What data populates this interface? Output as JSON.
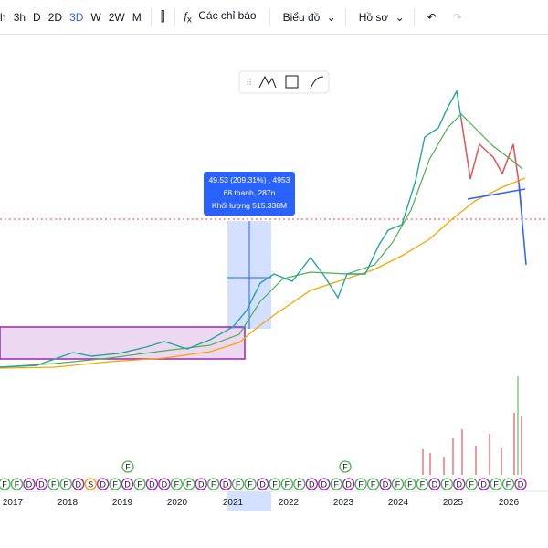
{
  "toolbar": {
    "intervals": [
      "h",
      "3h",
      "D",
      "2D",
      "3D",
      "W",
      "2W",
      "M"
    ],
    "active_interval": "3D",
    "indicators": "Các chỉ báo",
    "chart": "Biểu đồ",
    "profile": "Hồ sơ"
  },
  "tooltip": [
    "49.53 (209.31%) , 4953",
    "68 thanh, 287n",
    "Khối lượng 515.338M"
  ],
  "years": [
    "2017",
    "2018",
    "2019",
    "2020",
    "2021",
    "2022",
    "2023",
    "2024",
    "2025",
    "2026"
  ],
  "event_markers": [
    "F",
    "F",
    "D",
    "D",
    "F",
    "F",
    "D",
    "S",
    "D",
    "F",
    "D",
    "F",
    "D",
    "D",
    "F",
    "F",
    "D",
    "F",
    "D",
    "F",
    "F",
    "D",
    "F",
    "F",
    "F",
    "D",
    "D",
    "F",
    "D",
    "F",
    "F",
    "D",
    "F",
    "F",
    "F",
    "D",
    "F",
    "D",
    "F",
    "D",
    "F",
    "F",
    "D"
  ],
  "raised_markers": [
    "F",
    "F"
  ]
}
